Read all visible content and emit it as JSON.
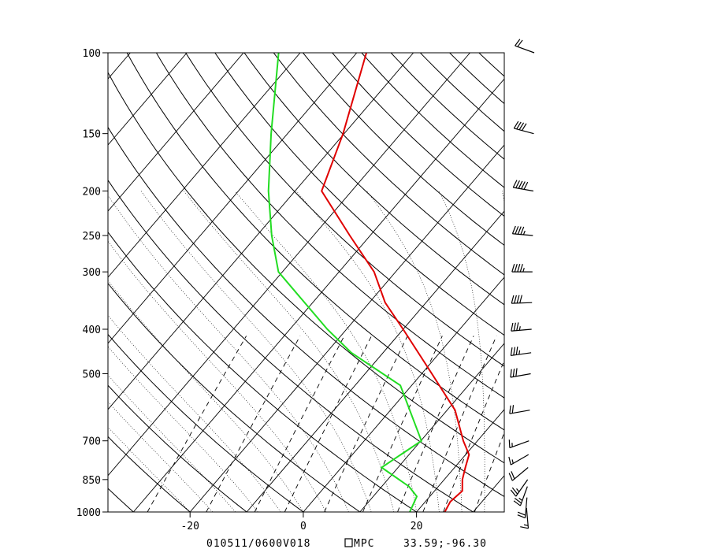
{
  "chart_data": {
    "type": "line",
    "title": "",
    "xlabel": "",
    "ylabel": "",
    "footer": {
      "time": "010511/0600V018",
      "source": "MPC",
      "location": "33.59;-96.30"
    },
    "pressure_ticks": [
      100,
      150,
      200,
      250,
      300,
      400,
      500,
      700,
      850,
      1000
    ],
    "temperature_ticks": [
      -20,
      0,
      20
    ],
    "xlim": [
      -34.5,
      35.5
    ],
    "ylim": [
      1000,
      100
    ],
    "y_scale": "log",
    "skew": true,
    "colors": {
      "temperature": "#e00000",
      "dewpoint": "#22dd22",
      "background_lines": "#000000"
    },
    "series": [
      {
        "key": "temperature",
        "points": [
          {
            "p": 1000,
            "t": 25
          },
          {
            "p": 950,
            "t": 24.4
          },
          {
            "p": 900,
            "t": 24.9
          },
          {
            "p": 850,
            "t": 23.2
          },
          {
            "p": 800,
            "t": 21.9
          },
          {
            "p": 750,
            "t": 20.6
          },
          {
            "p": 700,
            "t": 17.5
          },
          {
            "p": 600,
            "t": 11.4
          },
          {
            "p": 500,
            "t": 1.8
          },
          {
            "p": 400,
            "t": -10.0
          },
          {
            "p": 350,
            "t": -17.2
          },
          {
            "p": 300,
            "t": -23.8
          },
          {
            "p": 250,
            "t": -33.6
          },
          {
            "p": 200,
            "t": -45.3
          },
          {
            "p": 150,
            "t": -50.2
          },
          {
            "p": 100,
            "t": -58.3
          }
        ]
      },
      {
        "key": "dewpoint",
        "points": [
          {
            "p": 1000,
            "t": 18.8
          },
          {
            "p": 925,
            "t": 17.7
          },
          {
            "p": 880,
            "t": 14.8
          },
          {
            "p": 800,
            "t": 7.1
          },
          {
            "p": 700,
            "t": 10.1
          },
          {
            "p": 530,
            "t": -2.0
          },
          {
            "p": 450,
            "t": -15.6
          },
          {
            "p": 400,
            "t": -23.4
          },
          {
            "p": 300,
            "t": -40.7
          },
          {
            "p": 250,
            "t": -47.4
          },
          {
            "p": 200,
            "t": -54.7
          },
          {
            "p": 150,
            "t": -62.9
          },
          {
            "p": 100,
            "t": -73.8
          }
        ]
      }
    ],
    "wind_barbs": [
      {
        "p": 980,
        "dir": 175,
        "spd": 15
      },
      {
        "p": 930,
        "dir": 185,
        "spd": 20
      },
      {
        "p": 880,
        "dir": 200,
        "spd": 25
      },
      {
        "p": 850,
        "dir": 215,
        "spd": 25
      },
      {
        "p": 800,
        "dir": 230,
        "spd": 20
      },
      {
        "p": 750,
        "dir": 240,
        "spd": 15
      },
      {
        "p": 700,
        "dir": 250,
        "spd": 15
      },
      {
        "p": 600,
        "dir": 260,
        "spd": 20
      },
      {
        "p": 500,
        "dir": 260,
        "spd": 30
      },
      {
        "p": 450,
        "dir": 262,
        "spd": 35
      },
      {
        "p": 400,
        "dir": 265,
        "spd": 35
      },
      {
        "p": 350,
        "dir": 268,
        "spd": 40
      },
      {
        "p": 300,
        "dir": 270,
        "spd": 45
      },
      {
        "p": 250,
        "dir": 275,
        "spd": 45
      },
      {
        "p": 200,
        "dir": 280,
        "spd": 50
      },
      {
        "p": 150,
        "dir": 285,
        "spd": 40
      },
      {
        "p": 100,
        "dir": 290,
        "spd": 20
      }
    ]
  }
}
